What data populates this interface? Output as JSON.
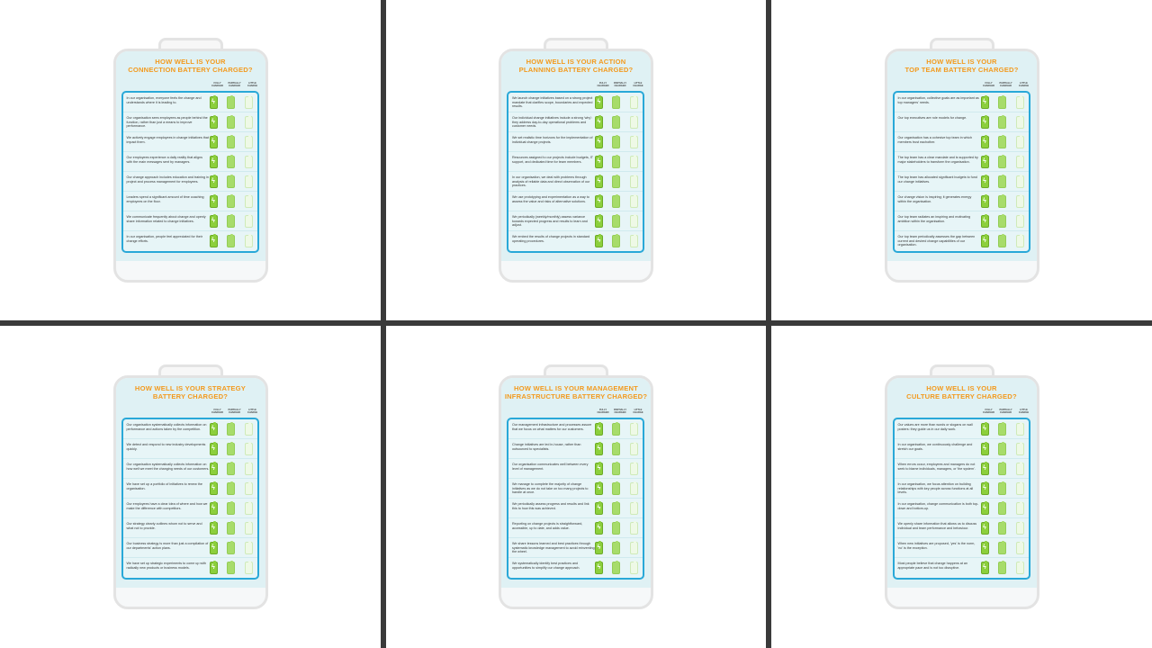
{
  "column_headers": [
    "FULLY CHARGED",
    "PARTIALLY CHARGED",
    "LITTLE CHARGE"
  ],
  "colors": {
    "title": "#f39a1e",
    "border": "#29a8d8",
    "battery_full": "#8ccf3c",
    "battery_partial": "#a7dc6a",
    "battery_empty": "#eef9e6"
  },
  "icons": [
    "battery-full-lightning-icon",
    "battery-partial-icon",
    "battery-empty-icon"
  ],
  "panels": [
    {
      "title": [
        "HOW WELL IS YOUR",
        "CONNECTION BATTERY CHARGED?"
      ],
      "items": [
        "In our organisation, everyone feels the change and understands where it is leading to.",
        "Our organisation sees employees as people behind the function, rather than just a means to improve performance.",
        "We actively engage employees in change initiatives that impact them.",
        "Our employees experience a daily reality that aligns with the main messages sent by managers.",
        "Our change approach includes education and training in project and process management for employees.",
        "Leaders spend a significant amount of time coaching employees on the floor.",
        "We communicate frequently about change and openly share information related to change initiatives.",
        "In our organisation, people feel appreciated for their change efforts."
      ]
    },
    {
      "title": [
        "HOW WELL IS YOUR ACTION",
        "PLANNING BATTERY CHARGED?"
      ],
      "items": [
        "We launch change initiatives based on a strong project mandate that clarifies scope, boundaries and expected results.",
        "Our individual change initiatives include a strong 'why': they address day-to-day operational problems and customer needs.",
        "We set realistic time horizons for the implementation of individual change projects.",
        "Resources assigned to our projects include budgets, IT support, and dedicated time for team members.",
        "In our organisation, we deal with problems through analysis of reliable data and direct observation of our practices.",
        "We use prototyping and experimentation as a way to assess the value and risks of alternative solutions.",
        "We periodically (weekly/monthly) assess variance towards expected progress and results to learn and adjust.",
        "We embed the results of change projects in standard operating procedures."
      ]
    },
    {
      "title": [
        "HOW WELL IS YOUR",
        "TOP TEAM BATTERY CHARGED?"
      ],
      "items": [
        "In our organisation, collective goals are as important as top managers' needs.",
        "Our top executives are role models for change.",
        "Our organisation has a cohesive top team in which members trust eachother.",
        "The top team has a clear mandate and is supported by major stakeholders to transform the organisation.",
        "The top team has allocated significant budgets to fund our change initiatives.",
        "Our change vision is inspiring; it generates energy within the organisation.",
        "Our top team radiates an inspiring and motivating ambition within the organisation.",
        "Our top team periodically assesses the gap between current and desired change capabilities of our organisation."
      ]
    },
    {
      "title": [
        "HOW WELL IS YOUR STRATEGY",
        "BATTERY CHARGED?"
      ],
      "items": [
        "Our organisation systematically collects information on performance and actions taken by the competition.",
        "We detect and respond to new industry developments quickly.",
        "Our organisation systematically collects information on how well we meet the changing needs of our customers.",
        "We have set up a portfolio of initiatives to renew the organisation.",
        "Our employees have a clear idea of where and how we make the difference with competitors.",
        "Our strategy clearly outlines whom not to serve and what not to provide.",
        "Our business strategy is more than just a compilation of our departments' action plans.",
        "We have set up strategic experiments to come up with radically new products or business models."
      ]
    },
    {
      "title": [
        "HOW WELL IS YOUR MANAGEMENT",
        "INFRASTRUCTURE  BATTERY CHARGED?"
      ],
      "items": [
        "Our management infrastructure and processes assure that we focus on what matters for our customers.",
        "Change initiatives are led in-house, rather than outsourced to specialists.",
        "Our organisation communicates well between every level of management.",
        "We manage to complete the majority of change initiatives as we do not take on too many projects to handle at once.",
        "We periodically assess progress and results and link this to how this was achieved.",
        "Reporting on change projects is straightforward, accessible, up to date, and adds value.",
        "We share lessons learned and best practices through systematic knowledge management to avoid reinventing the wheel.",
        "We systematically identify best practices and opportunities to simplify our change approach."
      ]
    },
    {
      "title": [
        "HOW WELL IS YOUR",
        "CULTURE BATTERY CHARGED?"
      ],
      "items": [
        "Our values are more than words or slogans on wall posters: they guide us in our daily work.",
        "In our organisation, we continuously challenge and stretch our goals.",
        "When errors occur, employees and managers do not seek to blame individuals, managers, or 'the system'.",
        "In our organisation, we focus attention on building relationships with key people across functions at all levels.",
        "In our organisation, change communication is both top-down and bottom-up.",
        "We openly share information that allows us to discuss individual and team performance and behaviour.",
        "When new initiatives are proposed, 'yes' is the norm, 'no' is the exception.",
        "Most people believe that change happens at an appropriate pace and is not too disruptive."
      ]
    }
  ]
}
